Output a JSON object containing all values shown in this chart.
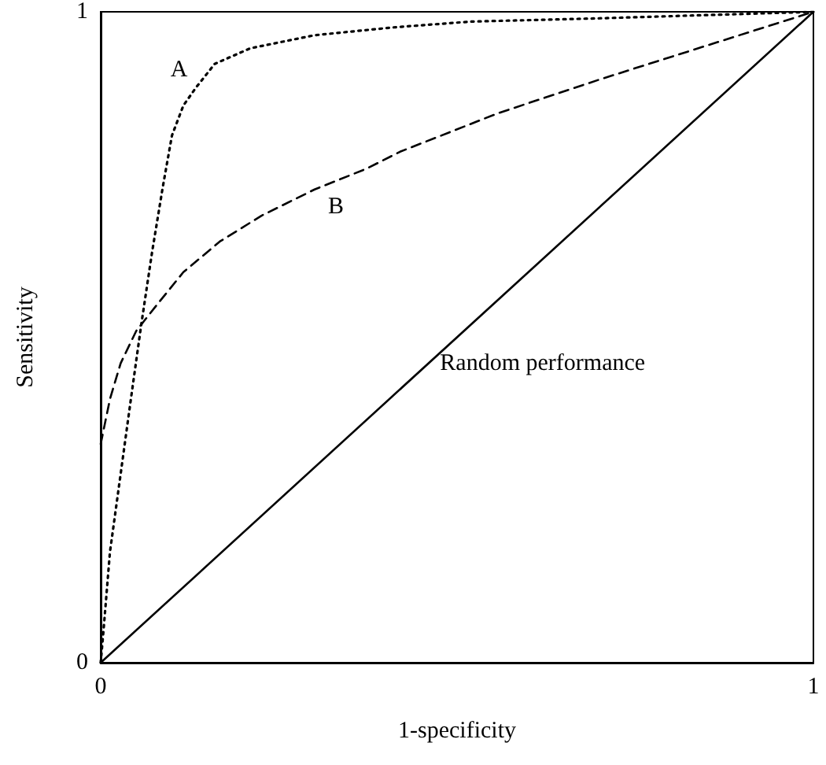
{
  "chart_data": {
    "type": "line",
    "xlabel": "1-specificity",
    "ylabel": "Sensitivity",
    "xlim": [
      0,
      1
    ],
    "ylim": [
      0,
      1
    ],
    "xticks": [
      0,
      1
    ],
    "yticks": [
      0,
      1
    ],
    "grid": false,
    "legend": false,
    "marker": "none",
    "series": [
      {
        "name": "A",
        "color": "#000000",
        "line_style": "dotted",
        "x": [
          0,
          0.004,
          0.013,
          0.028,
          0.043,
          0.057,
          0.072,
          0.087,
          0.1,
          0.116,
          0.134,
          0.16,
          0.21,
          0.3,
          0.41,
          0.52,
          0.7,
          0.85,
          1
        ],
        "values": [
          0,
          0.05,
          0.17,
          0.29,
          0.41,
          0.52,
          0.63,
          0.73,
          0.81,
          0.856,
          0.884,
          0.92,
          0.944,
          0.964,
          0.976,
          0.985,
          0.99,
          0.995,
          1
        ]
      },
      {
        "name": "B",
        "color": "#000000",
        "line_style": "dashed",
        "x": [
          0,
          0.013,
          0.028,
          0.05,
          0.079,
          0.116,
          0.167,
          0.226,
          0.3,
          0.373,
          0.42,
          0.557,
          0.7,
          0.85,
          1
        ],
        "values": [
          0.336,
          0.405,
          0.46,
          0.51,
          0.55,
          0.6,
          0.647,
          0.687,
          0.727,
          0.759,
          0.785,
          0.844,
          0.896,
          0.948,
          1
        ]
      },
      {
        "name": "Random performance",
        "color": "#000000",
        "line_style": "solid",
        "x": [
          0,
          1
        ],
        "values": [
          0,
          1
        ]
      }
    ]
  }
}
